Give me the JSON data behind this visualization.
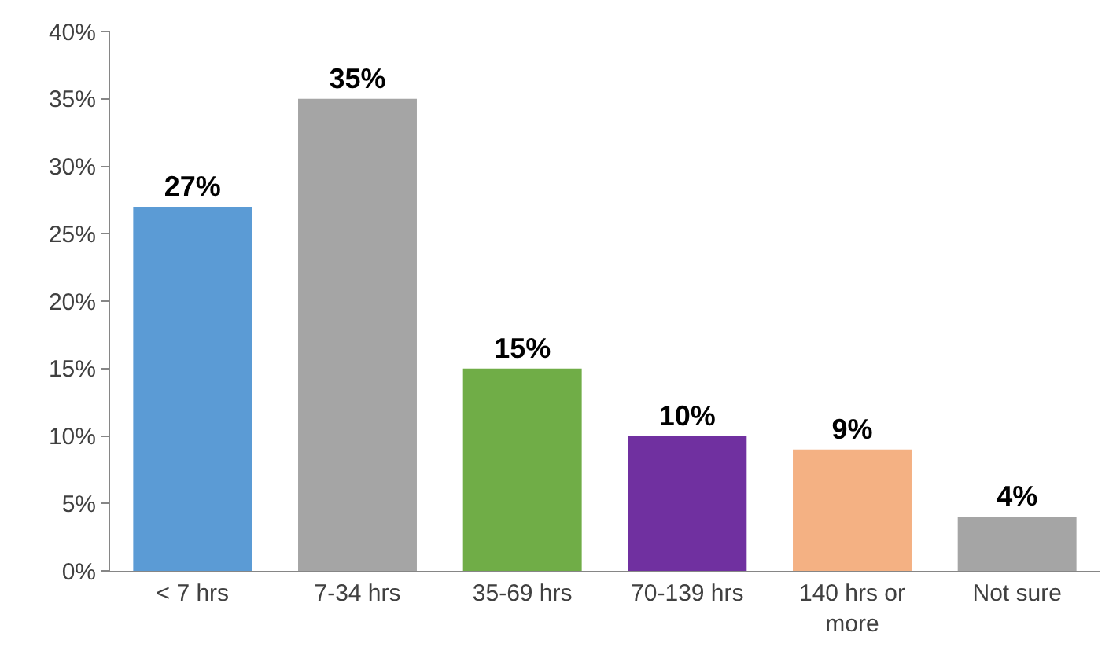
{
  "chart_data": {
    "type": "bar",
    "categories": [
      "< 7 hrs",
      "7-34 hrs",
      "35-69 hrs",
      "70-139 hrs",
      "140 hrs or more",
      "Not sure"
    ],
    "values": [
      27,
      35,
      15,
      10,
      9,
      4
    ],
    "colors": [
      "#5b9bd5",
      "#a5a5a5",
      "#70ad47",
      "#7030a0",
      "#f4b183",
      "#a5a5a5"
    ],
    "value_labels": [
      "27%",
      "35%",
      "15%",
      "10%",
      "9%",
      "4%"
    ],
    "ylim": [
      0,
      40
    ],
    "yticks": [
      {
        "value": 0,
        "label": "0%"
      },
      {
        "value": 5,
        "label": "5%"
      },
      {
        "value": 10,
        "label": "10%"
      },
      {
        "value": 15,
        "label": "15%"
      },
      {
        "value": 20,
        "label": "20%"
      },
      {
        "value": 25,
        "label": "25%"
      },
      {
        "value": 30,
        "label": "30%"
      },
      {
        "value": 35,
        "label": "35%"
      },
      {
        "value": 40,
        "label": "40%"
      }
    ],
    "legend": false
  }
}
